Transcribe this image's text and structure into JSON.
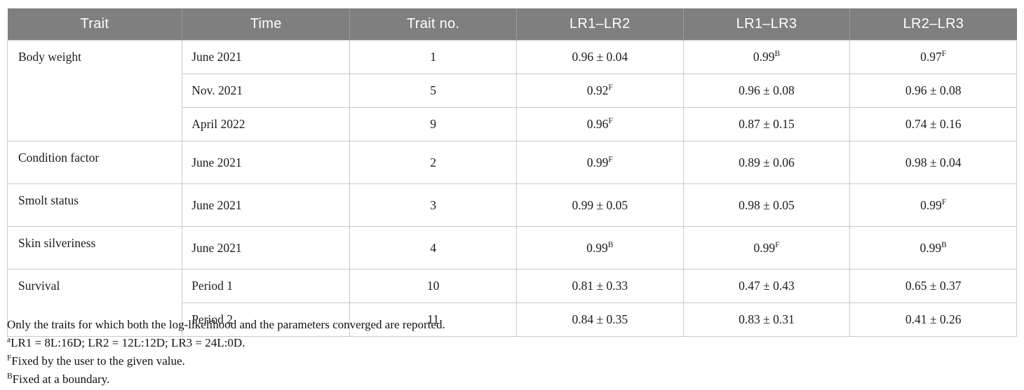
{
  "colors": {
    "header_bg": "#7f7f7f",
    "header_text": "#ffffff",
    "border": "#c9c9c9",
    "body_text": "#1c1c1c"
  },
  "table": {
    "columns": [
      "Trait",
      "Time",
      "Trait no.",
      "LR1–LR2",
      "LR1–LR3",
      "LR2–LR3"
    ],
    "groups": [
      {
        "trait": "Body weight",
        "rows": [
          {
            "time": "June 2021",
            "trait_no": "1",
            "lr1_lr2": {
              "v": "0.96 ± 0.04",
              "sup": ""
            },
            "lr1_lr3": {
              "v": "0.99",
              "sup": "B"
            },
            "lr2_lr3": {
              "v": "0.97",
              "sup": "F"
            }
          },
          {
            "time": "Nov. 2021",
            "trait_no": "5",
            "lr1_lr2": {
              "v": "0.92",
              "sup": "F"
            },
            "lr1_lr3": {
              "v": "0.96 ± 0.08",
              "sup": ""
            },
            "lr2_lr3": {
              "v": "0.96 ± 0.08",
              "sup": ""
            }
          },
          {
            "time": "April 2022",
            "trait_no": "9",
            "lr1_lr2": {
              "v": "0.96",
              "sup": "F"
            },
            "lr1_lr3": {
              "v": "0.87 ± 0.15",
              "sup": ""
            },
            "lr2_lr3": {
              "v": "0.74 ± 0.16",
              "sup": ""
            }
          }
        ]
      },
      {
        "trait": "Condition factor",
        "rows": [
          {
            "time": "June 2021",
            "trait_no": "2",
            "lr1_lr2": {
              "v": "0.99",
              "sup": "F"
            },
            "lr1_lr3": {
              "v": "0.89 ± 0.06",
              "sup": ""
            },
            "lr2_lr3": {
              "v": "0.98 ± 0.04",
              "sup": ""
            }
          }
        ]
      },
      {
        "trait": "Smolt status",
        "rows": [
          {
            "time": "June 2021",
            "trait_no": "3",
            "lr1_lr2": {
              "v": "0.99 ± 0.05",
              "sup": ""
            },
            "lr1_lr3": {
              "v": "0.98 ± 0.05",
              "sup": ""
            },
            "lr2_lr3": {
              "v": "0.99",
              "sup": "F"
            }
          }
        ]
      },
      {
        "trait": "Skin silveriness",
        "rows": [
          {
            "time": "June 2021",
            "trait_no": "4",
            "lr1_lr2": {
              "v": "0.99",
              "sup": "B"
            },
            "lr1_lr3": {
              "v": "0.99",
              "sup": "F"
            },
            "lr2_lr3": {
              "v": "0.99",
              "sup": "B"
            }
          }
        ]
      },
      {
        "trait": "Survival",
        "rows": [
          {
            "time": "Period 1",
            "trait_no": "10",
            "lr1_lr2": {
              "v": "0.81 ± 0.33",
              "sup": ""
            },
            "lr1_lr3": {
              "v": "0.47 ± 0.43",
              "sup": ""
            },
            "lr2_lr3": {
              "v": "0.65 ± 0.37",
              "sup": ""
            }
          },
          {
            "time": "Period 2",
            "trait_no": "11",
            "lr1_lr2": {
              "v": "0.84 ± 0.35",
              "sup": ""
            },
            "lr1_lr3": {
              "v": "0.83 ± 0.31",
              "sup": ""
            },
            "lr2_lr3": {
              "v": "0.41 ± 0.26",
              "sup": ""
            }
          }
        ]
      }
    ],
    "footnotes": [
      {
        "sup": "",
        "text": "Only the traits for which both the log-likelihood and the parameters converged are reported."
      },
      {
        "sup": "a",
        "text": "LR1 = 8L:16D; LR2 = 12L:12D; LR3 = 24L:0D."
      },
      {
        "sup": "F",
        "text": "Fixed by the user to the given value."
      },
      {
        "sup": "B",
        "text": "Fixed at a boundary."
      }
    ]
  }
}
